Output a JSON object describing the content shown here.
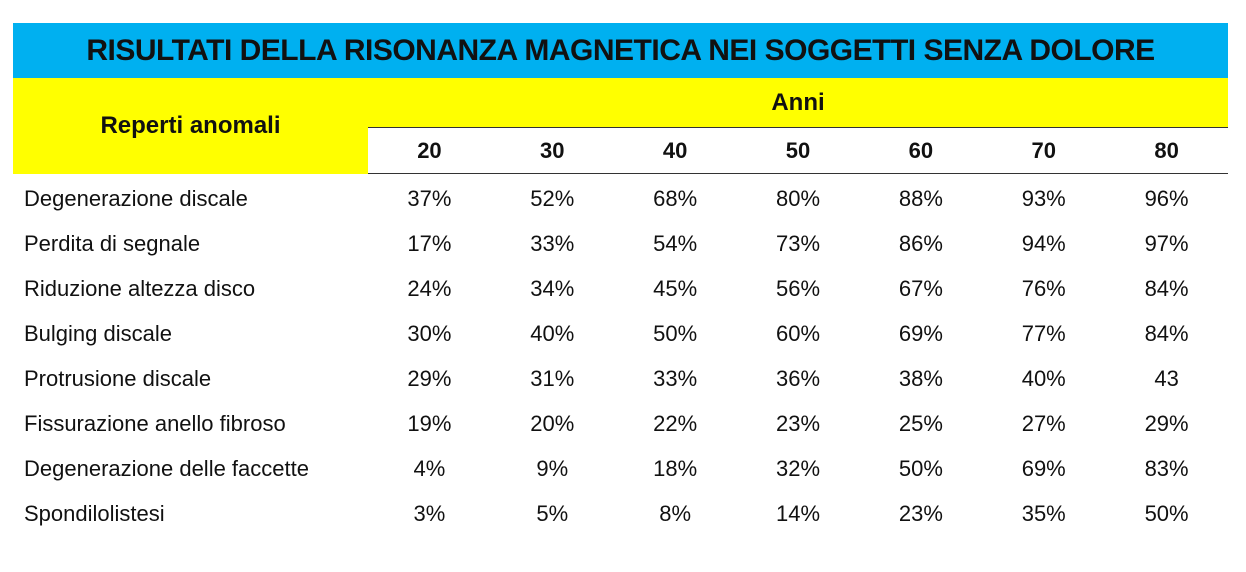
{
  "title": "RISULTATI DELLA RISONANZA MAGNETICA NEI SOGGETTI SENZA DOLORE",
  "row_header": "Reperti anomali",
  "column_group_header": "Anni",
  "years": [
    "20",
    "30",
    "40",
    "50",
    "60",
    "70",
    "80"
  ],
  "rows": [
    {
      "label": "Degenerazione discale",
      "values": [
        "37%",
        "52%",
        "68%",
        "80%",
        "88%",
        "93%",
        "96%"
      ]
    },
    {
      "label": "Perdita di segnale",
      "values": [
        "17%",
        "33%",
        "54%",
        "73%",
        "86%",
        "94%",
        "97%"
      ]
    },
    {
      "label": "Riduzione altezza disco",
      "values": [
        "24%",
        "34%",
        "45%",
        "56%",
        "67%",
        "76%",
        "84%"
      ]
    },
    {
      "label": "Bulging discale",
      "values": [
        "30%",
        "40%",
        "50%",
        "60%",
        "69%",
        "77%",
        "84%"
      ]
    },
    {
      "label": "Protrusione discale",
      "values": [
        "29%",
        "31%",
        "33%",
        "36%",
        "38%",
        "40%",
        "43"
      ]
    },
    {
      "label": "Fissurazione anello fibroso",
      "values": [
        "19%",
        "20%",
        "22%",
        "23%",
        "25%",
        "27%",
        "29%"
      ]
    },
    {
      "label": "Degenerazione delle faccette",
      "values": [
        "4%",
        "9%",
        "18%",
        "32%",
        "50%",
        "69%",
        "83%"
      ]
    },
    {
      "label": "Spondilolistesi",
      "values": [
        "3%",
        "5%",
        "8%",
        "14%",
        "23%",
        "35%",
        "50%"
      ]
    }
  ],
  "colors": {
    "title_background": "#00b0f0",
    "header_background": "#ffff00"
  }
}
